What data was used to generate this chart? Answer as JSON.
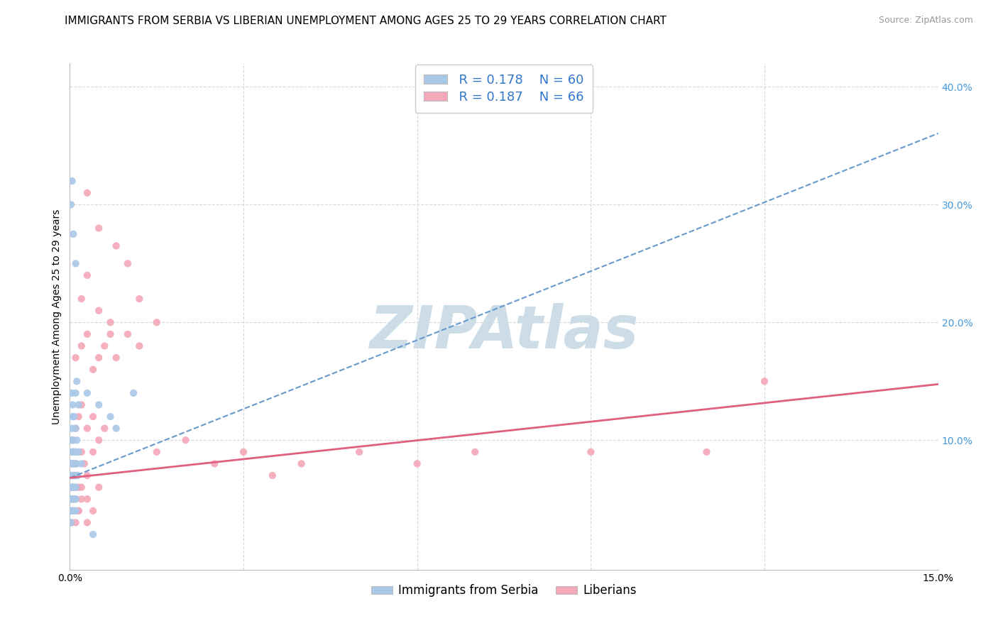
{
  "title": "IMMIGRANTS FROM SERBIA VS LIBERIAN UNEMPLOYMENT AMONG AGES 25 TO 29 YEARS CORRELATION CHART",
  "source": "Source: ZipAtlas.com",
  "ylabel": "Unemployment Among Ages 25 to 29 years",
  "x_min": 0.0,
  "x_max": 0.15,
  "y_min": -0.01,
  "y_max": 0.42,
  "serbia_color": "#aac8e8",
  "liberian_color": "#f4a8b8",
  "serbia_line_color": "#6699cc",
  "liberian_line_color": "#e06080",
  "background_color": "#ffffff",
  "grid_color": "#d8d8d8",
  "title_fontsize": 11,
  "axis_label_fontsize": 10,
  "tick_fontsize": 10,
  "watermark_text": "ZIPAtlas",
  "watermark_color": "#ccdde8",
  "watermark_fontsize": 60,
  "serbia_trend_intercept": 0.068,
  "serbia_trend_slope": 1.95,
  "liberian_trend_intercept": 0.068,
  "liberian_trend_slope": 0.53,
  "serbia_scatter_x": [
    0.0002,
    0.0003,
    0.0004,
    0.0005,
    0.0006,
    0.0007,
    0.0008,
    0.0009,
    0.001,
    0.0012,
    0.0002,
    0.0003,
    0.0004,
    0.0005,
    0.0006,
    0.0007,
    0.0008,
    0.001,
    0.0012,
    0.0015,
    0.0002,
    0.0003,
    0.0004,
    0.0005,
    0.0006,
    0.0007,
    0.0009,
    0.001,
    0.0013,
    0.0002,
    0.0003,
    0.0004,
    0.0005,
    0.0006,
    0.0008,
    0.001,
    0.0003,
    0.0004,
    0.0005,
    0.0006,
    0.0007,
    0.001,
    0.0015,
    0.0003,
    0.0005,
    0.0007,
    0.001,
    0.0012,
    0.0002,
    0.0004,
    0.0006,
    0.001,
    0.003,
    0.005,
    0.007,
    0.008,
    0.011,
    0.002,
    0.004
  ],
  "serbia_scatter_y": [
    0.07,
    0.08,
    0.09,
    0.07,
    0.08,
    0.09,
    0.08,
    0.07,
    0.09,
    0.1,
    0.05,
    0.06,
    0.07,
    0.08,
    0.06,
    0.05,
    0.07,
    0.06,
    0.08,
    0.09,
    0.04,
    0.05,
    0.06,
    0.07,
    0.05,
    0.04,
    0.06,
    0.05,
    0.07,
    0.03,
    0.04,
    0.05,
    0.06,
    0.04,
    0.05,
    0.04,
    0.1,
    0.11,
    0.12,
    0.1,
    0.09,
    0.11,
    0.13,
    0.14,
    0.13,
    0.12,
    0.14,
    0.15,
    0.3,
    0.32,
    0.275,
    0.25,
    0.14,
    0.13,
    0.12,
    0.11,
    0.14,
    0.08,
    0.02
  ],
  "liberian_scatter_x": [
    0.0003,
    0.0005,
    0.0007,
    0.001,
    0.0012,
    0.0015,
    0.002,
    0.0025,
    0.003,
    0.004,
    0.0003,
    0.0005,
    0.0008,
    0.001,
    0.0015,
    0.002,
    0.003,
    0.004,
    0.005,
    0.0003,
    0.0005,
    0.0008,
    0.001,
    0.0015,
    0.002,
    0.003,
    0.0005,
    0.001,
    0.0015,
    0.002,
    0.003,
    0.004,
    0.005,
    0.006,
    0.001,
    0.002,
    0.003,
    0.004,
    0.005,
    0.006,
    0.007,
    0.008,
    0.002,
    0.003,
    0.005,
    0.007,
    0.01,
    0.012,
    0.003,
    0.005,
    0.008,
    0.01,
    0.012,
    0.015,
    0.015,
    0.02,
    0.025,
    0.03,
    0.035,
    0.04,
    0.05,
    0.06,
    0.07,
    0.09,
    0.11,
    0.12
  ],
  "liberian_scatter_y": [
    0.08,
    0.09,
    0.07,
    0.08,
    0.07,
    0.06,
    0.09,
    0.08,
    0.07,
    0.09,
    0.05,
    0.06,
    0.07,
    0.05,
    0.04,
    0.06,
    0.05,
    0.04,
    0.06,
    0.03,
    0.04,
    0.05,
    0.03,
    0.04,
    0.05,
    0.03,
    0.1,
    0.11,
    0.12,
    0.13,
    0.11,
    0.12,
    0.1,
    0.11,
    0.17,
    0.18,
    0.19,
    0.16,
    0.17,
    0.18,
    0.19,
    0.17,
    0.22,
    0.24,
    0.21,
    0.2,
    0.19,
    0.18,
    0.31,
    0.28,
    0.265,
    0.25,
    0.22,
    0.2,
    0.09,
    0.1,
    0.08,
    0.09,
    0.07,
    0.08,
    0.09,
    0.08,
    0.09,
    0.09,
    0.09,
    0.15
  ]
}
